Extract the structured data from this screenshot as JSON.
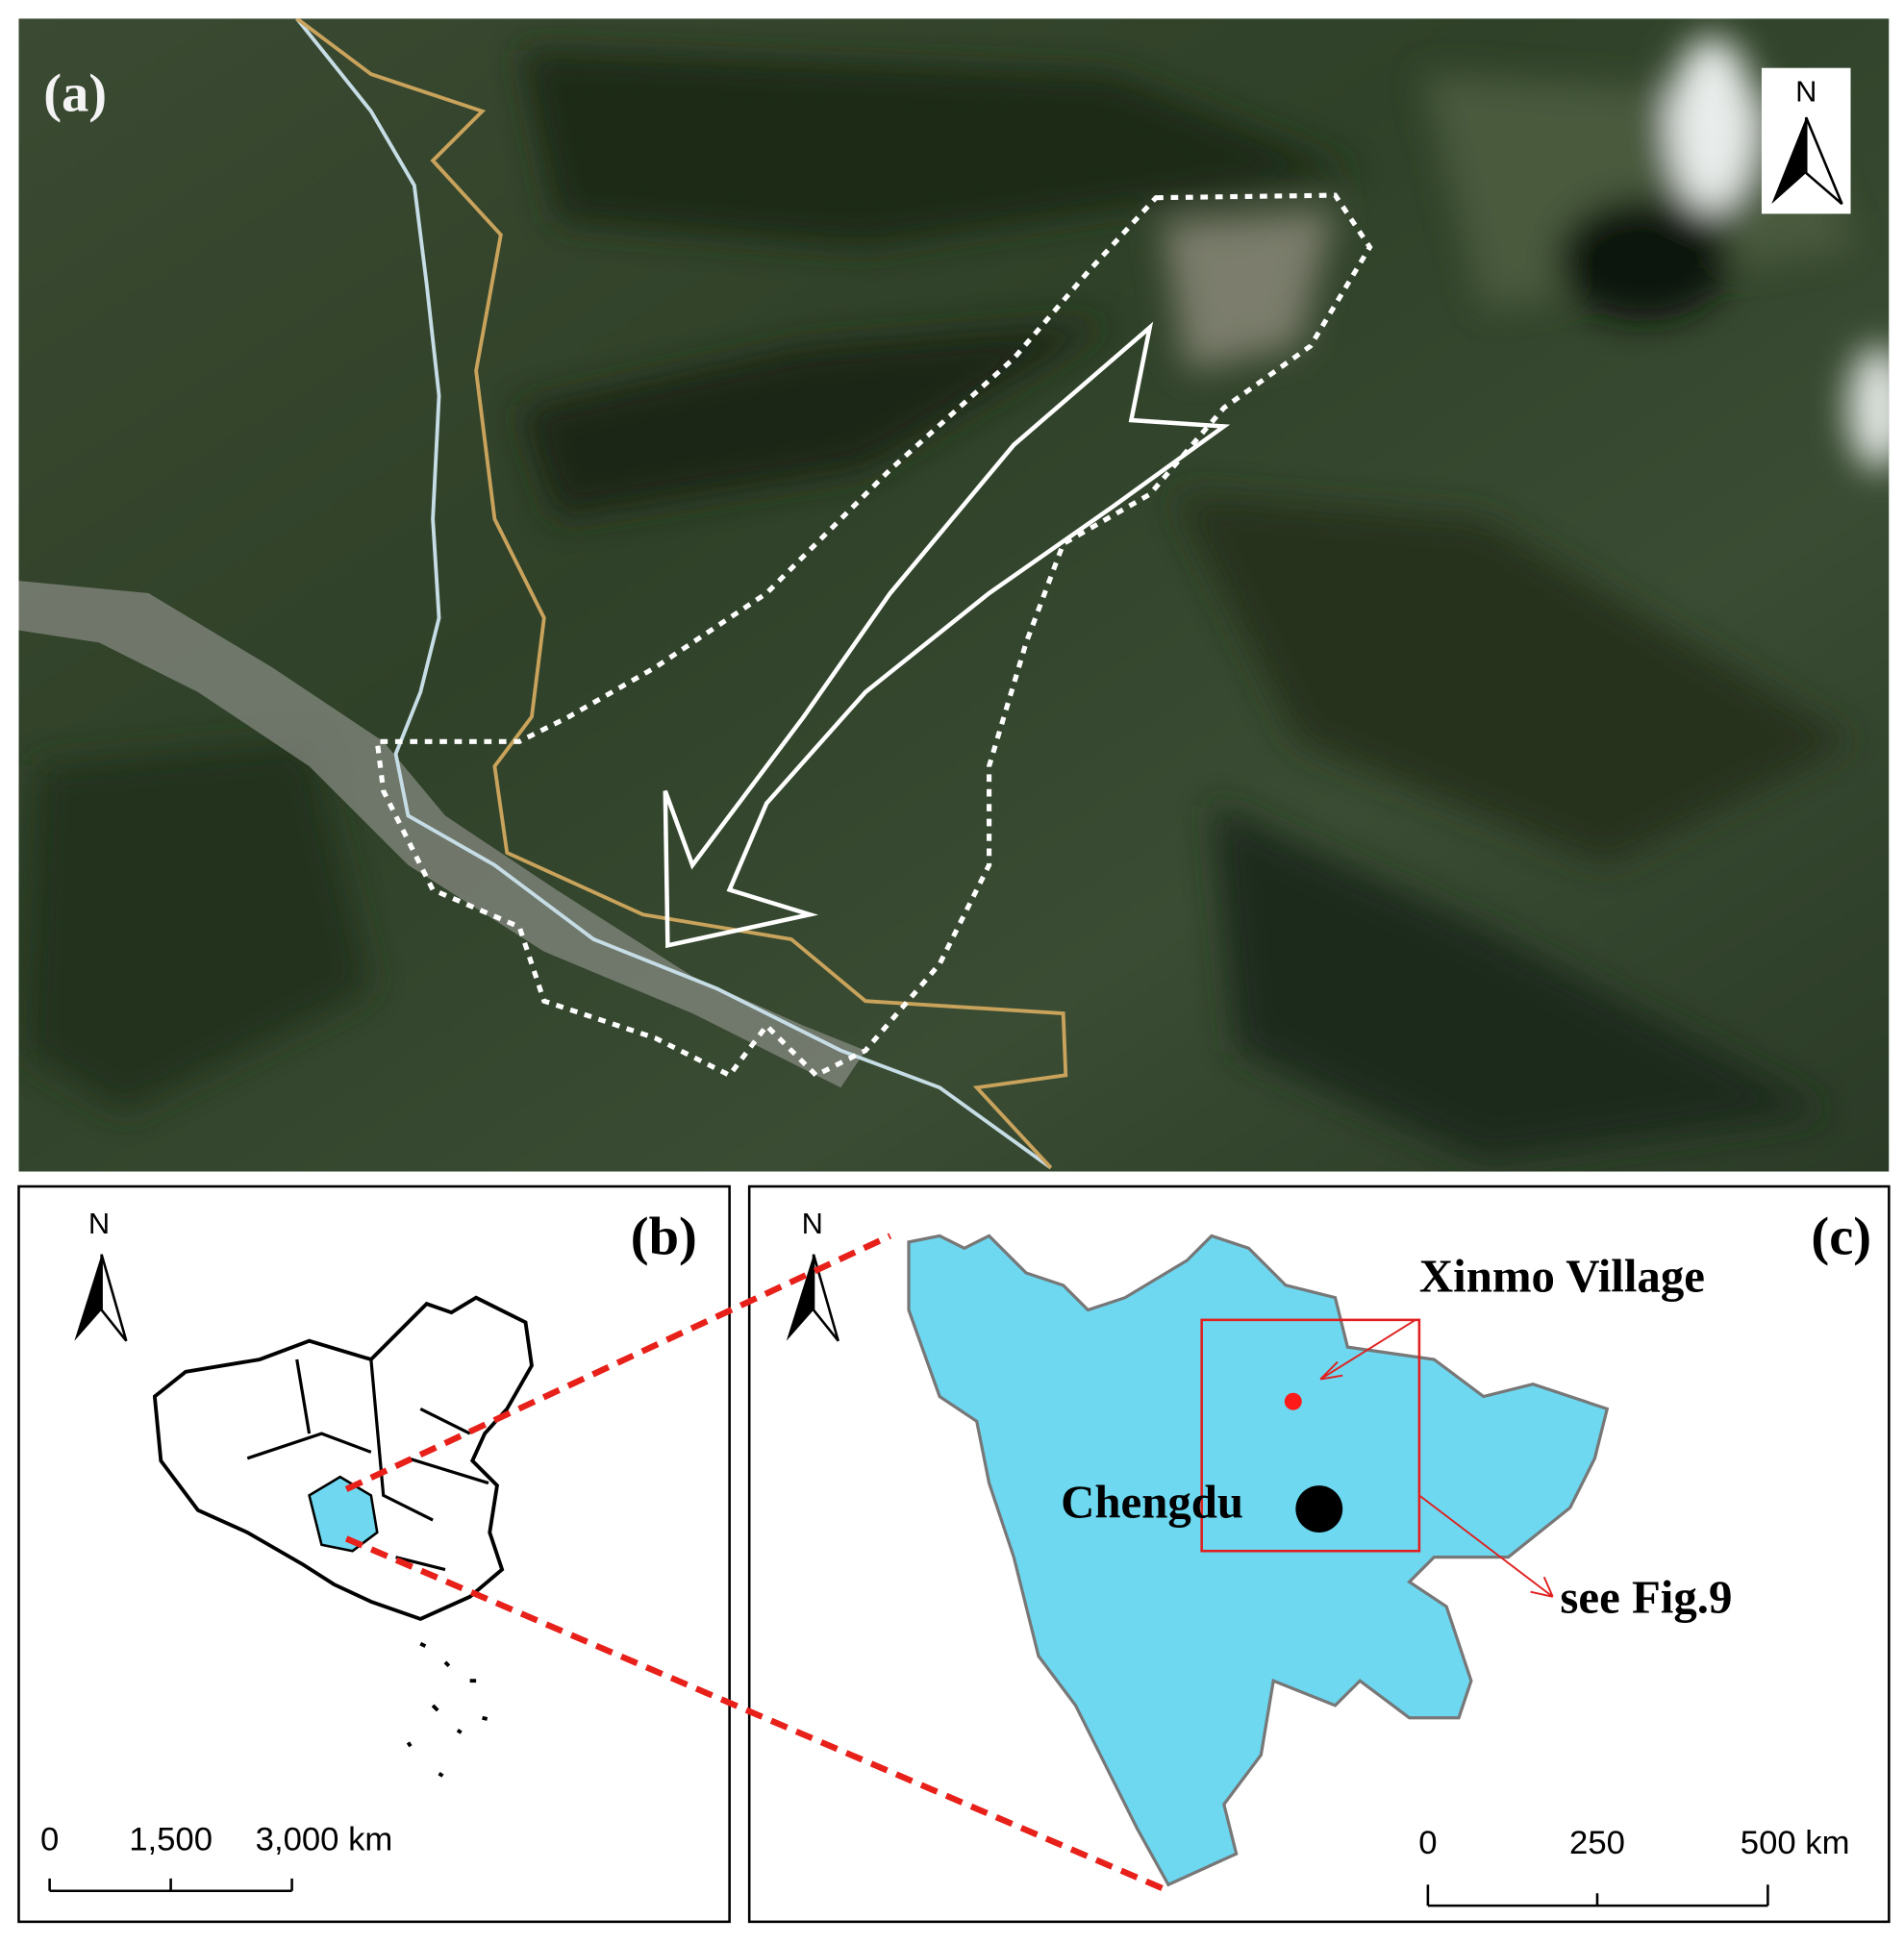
{
  "panel_a": {
    "label": "(a)",
    "north": "N"
  },
  "panel_b": {
    "label": "(b)",
    "north": "N",
    "scale_labels": [
      "0",
      "1,500",
      "3,000 km"
    ]
  },
  "panel_c": {
    "label": "(c)",
    "north": "N",
    "scale_labels": [
      "0",
      "250",
      "500 km"
    ],
    "xinmo": "Xinmo Village",
    "chengdu": "Chengdu",
    "note": "see Fig.9"
  }
}
